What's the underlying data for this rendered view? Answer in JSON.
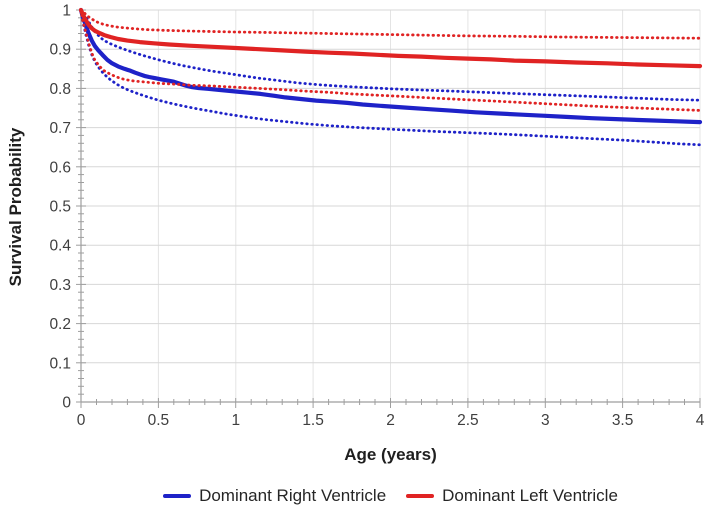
{
  "chart_data": {
    "type": "line",
    "title": "",
    "xlabel": "Age (years)",
    "ylabel": "Survival Probability",
    "xlim": [
      0,
      4
    ],
    "ylim": [
      0,
      1
    ],
    "x_ticks": [
      0,
      0.5,
      1,
      1.5,
      2,
      2.5,
      3,
      3.5,
      4
    ],
    "x_tick_labels": [
      "0",
      "0.5",
      "1",
      "1.5",
      "2",
      "2.5",
      "3",
      "3.5",
      "4"
    ],
    "y_ticks": [
      0,
      0.1,
      0.2,
      0.3,
      0.4,
      0.5,
      0.6,
      0.7,
      0.8,
      0.9,
      1
    ],
    "y_tick_labels": [
      "0",
      "0.1",
      "0.2",
      "0.3",
      "0.4",
      "0.5",
      "0.6",
      "0.7",
      "0.8",
      "0.9",
      "1"
    ],
    "x_minor_step": 0.1,
    "y_minor_step": 0.02,
    "grid": true,
    "legend_position": "bottom",
    "colors": {
      "blue": "#1E22C8",
      "red": "#E02323",
      "grid_horizontal": "#D7D7D7",
      "grid_vertical": "#E4E4E4",
      "axis": "#9E9E9E",
      "tick_label": "#3F3F3F",
      "axis_title": "#1F1F1F",
      "legend_text": "#262626"
    },
    "legend": [
      {
        "label": "Dominant Right Ventricle",
        "color": "#1E22C8"
      },
      {
        "label": "Dominant Left Ventricle",
        "color": "#E02323"
      }
    ],
    "series": [
      {
        "name": "Dominant Right Ventricle 95% CI upper",
        "style": "dotted",
        "color": "#1E22C8",
        "points": [
          [
            0,
            1
          ],
          [
            0.02,
            0.99
          ],
          [
            0.04,
            0.977
          ],
          [
            0.06,
            0.963
          ],
          [
            0.08,
            0.95
          ],
          [
            0.1,
            0.94
          ],
          [
            0.13,
            0.928
          ],
          [
            0.16,
            0.92
          ],
          [
            0.2,
            0.912
          ],
          [
            0.25,
            0.904
          ],
          [
            0.3,
            0.897
          ],
          [
            0.36,
            0.889
          ],
          [
            0.42,
            0.882
          ],
          [
            0.5,
            0.873
          ],
          [
            0.58,
            0.865
          ],
          [
            0.66,
            0.858
          ],
          [
            0.75,
            0.851
          ],
          [
            0.85,
            0.844
          ],
          [
            0.95,
            0.838
          ],
          [
            1.05,
            0.832
          ],
          [
            1.15,
            0.826
          ],
          [
            1.28,
            0.82
          ],
          [
            1.4,
            0.814
          ],
          [
            1.55,
            0.809
          ],
          [
            1.7,
            0.805
          ],
          [
            1.85,
            0.802
          ],
          [
            2.0,
            0.799
          ],
          [
            2.2,
            0.796
          ],
          [
            2.4,
            0.793
          ],
          [
            2.6,
            0.79
          ],
          [
            2.8,
            0.787
          ],
          [
            3.0,
            0.784
          ],
          [
            3.2,
            0.781
          ],
          [
            3.4,
            0.778
          ],
          [
            3.6,
            0.775
          ],
          [
            3.8,
            0.772
          ],
          [
            4.0,
            0.77
          ]
        ]
      },
      {
        "name": "Dominant Right Ventricle 95% CI lower",
        "style": "dotted",
        "color": "#1E22C8",
        "points": [
          [
            0,
            1
          ],
          [
            0.01,
            0.975
          ],
          [
            0.03,
            0.94
          ],
          [
            0.05,
            0.91
          ],
          [
            0.07,
            0.886
          ],
          [
            0.09,
            0.868
          ],
          [
            0.12,
            0.85
          ],
          [
            0.15,
            0.836
          ],
          [
            0.19,
            0.822
          ],
          [
            0.23,
            0.811
          ],
          [
            0.28,
            0.8
          ],
          [
            0.33,
            0.792
          ],
          [
            0.38,
            0.785
          ],
          [
            0.44,
            0.777
          ],
          [
            0.5,
            0.77
          ],
          [
            0.58,
            0.762
          ],
          [
            0.66,
            0.755
          ],
          [
            0.75,
            0.748
          ],
          [
            0.85,
            0.741
          ],
          [
            0.95,
            0.734
          ],
          [
            1.05,
            0.728
          ],
          [
            1.18,
            0.721
          ],
          [
            1.3,
            0.716
          ],
          [
            1.45,
            0.71
          ],
          [
            1.6,
            0.705
          ],
          [
            1.75,
            0.701
          ],
          [
            1.9,
            0.698
          ],
          [
            2.1,
            0.694
          ],
          [
            2.3,
            0.69
          ],
          [
            2.5,
            0.687
          ],
          [
            2.7,
            0.684
          ],
          [
            2.9,
            0.68
          ],
          [
            3.1,
            0.676
          ],
          [
            3.3,
            0.672
          ],
          [
            3.5,
            0.668
          ],
          [
            3.7,
            0.663
          ],
          [
            3.85,
            0.659
          ],
          [
            4.0,
            0.656
          ]
        ]
      },
      {
        "name": "Dominant Right Ventricle",
        "style": "solid",
        "color": "#1E22C8",
        "points": [
          [
            0,
            1
          ],
          [
            0.01,
            0.985
          ],
          [
            0.03,
            0.962
          ],
          [
            0.05,
            0.94
          ],
          [
            0.07,
            0.922
          ],
          [
            0.09,
            0.908
          ],
          [
            0.11,
            0.898
          ],
          [
            0.14,
            0.885
          ],
          [
            0.17,
            0.873
          ],
          [
            0.2,
            0.864
          ],
          [
            0.24,
            0.856
          ],
          [
            0.28,
            0.85
          ],
          [
            0.32,
            0.845
          ],
          [
            0.35,
            0.84
          ],
          [
            0.38,
            0.836
          ],
          [
            0.41,
            0.832
          ],
          [
            0.44,
            0.829
          ],
          [
            0.48,
            0.826
          ],
          [
            0.52,
            0.823
          ],
          [
            0.56,
            0.82
          ],
          [
            0.6,
            0.817
          ],
          [
            0.64,
            0.812
          ],
          [
            0.68,
            0.807
          ],
          [
            0.72,
            0.803
          ],
          [
            0.76,
            0.801
          ],
          [
            0.82,
            0.799
          ],
          [
            0.9,
            0.796
          ],
          [
            1.0,
            0.792
          ],
          [
            1.08,
            0.789
          ],
          [
            1.16,
            0.786
          ],
          [
            1.25,
            0.781
          ],
          [
            1.32,
            0.777
          ],
          [
            1.42,
            0.773
          ],
          [
            1.52,
            0.769
          ],
          [
            1.62,
            0.766
          ],
          [
            1.72,
            0.763
          ],
          [
            1.82,
            0.759
          ],
          [
            1.95,
            0.755
          ],
          [
            2.1,
            0.751
          ],
          [
            2.25,
            0.747
          ],
          [
            2.4,
            0.743
          ],
          [
            2.55,
            0.739
          ],
          [
            2.7,
            0.736
          ],
          [
            2.85,
            0.733
          ],
          [
            3.0,
            0.73
          ],
          [
            3.15,
            0.727
          ],
          [
            3.3,
            0.724
          ],
          [
            3.5,
            0.721
          ],
          [
            3.7,
            0.718
          ],
          [
            3.85,
            0.716
          ],
          [
            4.0,
            0.714
          ]
        ]
      },
      {
        "name": "Dominant Left Ventricle 95% CI upper",
        "style": "dotted",
        "color": "#E02323",
        "points": [
          [
            0,
            1
          ],
          [
            0.02,
            0.993
          ],
          [
            0.04,
            0.985
          ],
          [
            0.07,
            0.977
          ],
          [
            0.1,
            0.97
          ],
          [
            0.14,
            0.964
          ],
          [
            0.18,
            0.96
          ],
          [
            0.24,
            0.956
          ],
          [
            0.32,
            0.953
          ],
          [
            0.42,
            0.95
          ],
          [
            0.55,
            0.948
          ],
          [
            0.75,
            0.946
          ],
          [
            1.0,
            0.944
          ],
          [
            1.3,
            0.942
          ],
          [
            1.6,
            0.94
          ],
          [
            1.9,
            0.938
          ],
          [
            2.2,
            0.936
          ],
          [
            2.5,
            0.934
          ],
          [
            2.8,
            0.933
          ],
          [
            3.1,
            0.931
          ],
          [
            3.4,
            0.93
          ],
          [
            3.7,
            0.929
          ],
          [
            4.0,
            0.928
          ]
        ]
      },
      {
        "name": "Dominant Left Ventricle 95% CI lower",
        "style": "dotted",
        "color": "#E02323",
        "points": [
          [
            0,
            1
          ],
          [
            0.01,
            0.975
          ],
          [
            0.03,
            0.945
          ],
          [
            0.05,
            0.915
          ],
          [
            0.07,
            0.89
          ],
          [
            0.09,
            0.872
          ],
          [
            0.12,
            0.856
          ],
          [
            0.15,
            0.845
          ],
          [
            0.19,
            0.836
          ],
          [
            0.23,
            0.829
          ],
          [
            0.28,
            0.823
          ],
          [
            0.34,
            0.819
          ],
          [
            0.42,
            0.816
          ],
          [
            0.5,
            0.813
          ],
          [
            0.6,
            0.811
          ],
          [
            0.72,
            0.808
          ],
          [
            0.85,
            0.806
          ],
          [
            1.0,
            0.803
          ],
          [
            1.15,
            0.8
          ],
          [
            1.3,
            0.797
          ],
          [
            1.45,
            0.793
          ],
          [
            1.6,
            0.79
          ],
          [
            1.75,
            0.786
          ],
          [
            1.9,
            0.783
          ],
          [
            2.05,
            0.78
          ],
          [
            2.2,
            0.777
          ],
          [
            2.35,
            0.774
          ],
          [
            2.5,
            0.771
          ],
          [
            2.65,
            0.768
          ],
          [
            2.8,
            0.765
          ],
          [
            3.0,
            0.761
          ],
          [
            3.2,
            0.757
          ],
          [
            3.4,
            0.753
          ],
          [
            3.6,
            0.75
          ],
          [
            3.8,
            0.747
          ],
          [
            4.0,
            0.744
          ]
        ]
      },
      {
        "name": "Dominant Left Ventricle",
        "style": "solid",
        "color": "#E02323",
        "points": [
          [
            0,
            1
          ],
          [
            0.01,
            0.99
          ],
          [
            0.03,
            0.975
          ],
          [
            0.05,
            0.962
          ],
          [
            0.07,
            0.953
          ],
          [
            0.09,
            0.947
          ],
          [
            0.12,
            0.941
          ],
          [
            0.15,
            0.936
          ],
          [
            0.19,
            0.931
          ],
          [
            0.24,
            0.926
          ],
          [
            0.3,
            0.922
          ],
          [
            0.38,
            0.918
          ],
          [
            0.47,
            0.915
          ],
          [
            0.57,
            0.912
          ],
          [
            0.7,
            0.909
          ],
          [
            0.85,
            0.906
          ],
          [
            1.0,
            0.903
          ],
          [
            1.15,
            0.9
          ],
          [
            1.3,
            0.897
          ],
          [
            1.45,
            0.894
          ],
          [
            1.6,
            0.891
          ],
          [
            1.75,
            0.889
          ],
          [
            1.9,
            0.886
          ],
          [
            2.05,
            0.883
          ],
          [
            2.2,
            0.881
          ],
          [
            2.35,
            0.878
          ],
          [
            2.5,
            0.876
          ],
          [
            2.65,
            0.874
          ],
          [
            2.8,
            0.871
          ],
          [
            3.0,
            0.869
          ],
          [
            3.2,
            0.866
          ],
          [
            3.4,
            0.864
          ],
          [
            3.6,
            0.861
          ],
          [
            3.8,
            0.859
          ],
          [
            4.0,
            0.857
          ]
        ]
      }
    ]
  }
}
